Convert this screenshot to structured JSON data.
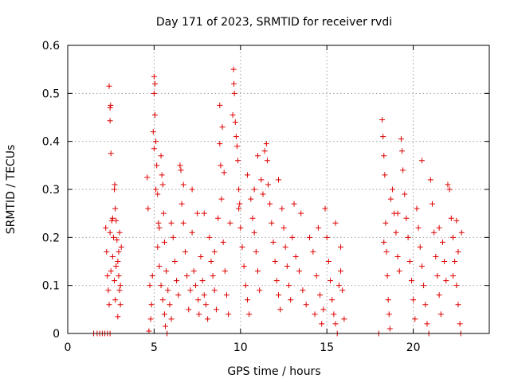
{
  "chart_data": {
    "type": "scatter",
    "title": "Day 171 of 2023, SRMTID for receiver rvdi",
    "xlabel": "GPS time / hours",
    "ylabel": "SRMTID / TECUs",
    "xlim": [
      0,
      24.4
    ],
    "ylim": [
      0,
      0.6
    ],
    "xticks": [
      0,
      5,
      10,
      15,
      20
    ],
    "xtick_labels": [
      "0",
      "5",
      "10",
      "15",
      "20"
    ],
    "yticks": [
      0,
      0.1,
      0.2,
      0.3,
      0.4,
      0.5,
      0.6
    ],
    "ytick_labels": [
      "0",
      "0.1",
      "0.2",
      "0.3",
      "0.4",
      "0.5",
      "0.6"
    ],
    "grid": true,
    "marker": "plus",
    "series": [
      {
        "name": "SRMTID",
        "color": "#e00000",
        "points": [
          [
            1.5,
            0.0
          ],
          [
            1.7,
            0.0
          ],
          [
            1.85,
            0.0
          ],
          [
            2.0,
            0.0
          ],
          [
            2.15,
            0.0
          ],
          [
            2.3,
            0.0
          ],
          [
            2.45,
            0.0
          ],
          [
            2.2,
            0.22
          ],
          [
            2.25,
            0.17
          ],
          [
            2.3,
            0.12
          ],
          [
            2.35,
            0.09
          ],
          [
            2.4,
            0.06
          ],
          [
            2.45,
            0.21
          ],
          [
            2.5,
            0.13
          ],
          [
            2.4,
            0.515
          ],
          [
            2.45,
            0.47
          ],
          [
            2.48,
            0.475
          ],
          [
            2.45,
            0.443
          ],
          [
            2.5,
            0.375
          ],
          [
            2.55,
            0.235
          ],
          [
            2.6,
            0.16
          ],
          [
            2.65,
            0.2
          ],
          [
            2.7,
            0.3
          ],
          [
            2.72,
            0.31
          ],
          [
            2.75,
            0.26
          ],
          [
            2.8,
            0.235
          ],
          [
            2.85,
            0.195
          ],
          [
            2.9,
            0.15
          ],
          [
            2.95,
            0.12
          ],
          [
            3.0,
            0.09
          ],
          [
            3.05,
            0.06
          ],
          [
            3.1,
            0.18
          ],
          [
            2.9,
            0.035
          ],
          [
            3.0,
            0.21
          ],
          [
            2.7,
            0.11
          ],
          [
            2.8,
            0.14
          ],
          [
            2.95,
            0.17
          ],
          [
            2.6,
            0.24
          ],
          [
            2.75,
            0.07
          ],
          [
            3.05,
            0.1
          ],
          [
            4.6,
            0.325
          ],
          [
            4.65,
            0.26
          ],
          [
            4.7,
            0.005
          ],
          [
            4.75,
            0.1
          ],
          [
            4.8,
            0.03
          ],
          [
            4.85,
            0.06
          ],
          [
            4.9,
            0.12
          ],
          [
            5.0,
            0.535
          ],
          [
            5.05,
            0.52
          ],
          [
            5.0,
            0.5
          ],
          [
            5.05,
            0.455
          ],
          [
            4.95,
            0.42
          ],
          [
            5.1,
            0.4
          ],
          [
            5.0,
            0.385
          ],
          [
            5.1,
            0.3
          ],
          [
            5.15,
            0.35
          ],
          [
            5.2,
            0.29
          ],
          [
            5.25,
            0.23
          ],
          [
            5.3,
            0.22
          ],
          [
            5.4,
            0.37
          ],
          [
            5.45,
            0.33
          ],
          [
            5.5,
            0.31
          ],
          [
            5.55,
            0.25
          ],
          [
            5.6,
            0.19
          ],
          [
            5.7,
            0.13
          ],
          [
            5.8,
            0.09
          ],
          [
            5.9,
            0.06
          ],
          [
            6.0,
            0.03
          ],
          [
            5.2,
            0.18
          ],
          [
            5.3,
            0.14
          ],
          [
            5.4,
            0.1
          ],
          [
            5.5,
            0.07
          ],
          [
            5.6,
            0.04
          ],
          [
            5.65,
            0.015
          ],
          [
            5.75,
            0.0
          ],
          [
            6.1,
            0.2
          ],
          [
            6.2,
            0.15
          ],
          [
            6.3,
            0.11
          ],
          [
            6.4,
            0.08
          ],
          [
            6.5,
            0.35
          ],
          [
            6.55,
            0.34
          ],
          [
            6.6,
            0.27
          ],
          [
            6.7,
            0.23
          ],
          [
            6.8,
            0.17
          ],
          [
            6.9,
            0.12
          ],
          [
            7.0,
            0.05
          ],
          [
            7.1,
            0.09
          ],
          [
            7.2,
            0.21
          ],
          [
            7.3,
            0.13
          ],
          [
            7.4,
            0.1
          ],
          [
            7.5,
            0.25
          ],
          [
            7.55,
            0.07
          ],
          [
            7.6,
            0.04
          ],
          [
            7.7,
            0.16
          ],
          [
            7.8,
            0.11
          ],
          [
            7.9,
            0.08
          ],
          [
            8.0,
            0.06
          ],
          [
            8.1,
            0.03
          ],
          [
            8.2,
            0.2
          ],
          [
            8.3,
            0.15
          ],
          [
            8.4,
            0.12
          ],
          [
            8.5,
            0.09
          ],
          [
            8.6,
            0.05
          ],
          [
            8.7,
            0.24
          ],
          [
            8.8,
            0.395
          ],
          [
            8.85,
            0.35
          ],
          [
            8.9,
            0.28
          ],
          [
            9.0,
            0.19
          ],
          [
            9.1,
            0.13
          ],
          [
            9.2,
            0.08
          ],
          [
            9.3,
            0.04
          ],
          [
            9.4,
            0.23
          ],
          [
            8.8,
            0.475
          ],
          [
            8.95,
            0.43
          ],
          [
            9.05,
            0.335
          ],
          [
            9.6,
            0.55
          ],
          [
            9.62,
            0.52
          ],
          [
            9.65,
            0.5
          ],
          [
            9.55,
            0.455
          ],
          [
            9.7,
            0.44
          ],
          [
            9.75,
            0.41
          ],
          [
            9.8,
            0.39
          ],
          [
            9.85,
            0.36
          ],
          [
            9.9,
            0.3
          ],
          [
            9.95,
            0.27
          ],
          [
            10.0,
            0.22
          ],
          [
            10.1,
            0.18
          ],
          [
            10.2,
            0.14
          ],
          [
            10.3,
            0.1
          ],
          [
            10.4,
            0.07
          ],
          [
            10.5,
            0.04
          ],
          [
            10.6,
            0.28
          ],
          [
            10.7,
            0.24
          ],
          [
            10.8,
            0.21
          ],
          [
            10.9,
            0.17
          ],
          [
            11.0,
            0.13
          ],
          [
            11.1,
            0.09
          ],
          [
            11.2,
            0.32
          ],
          [
            11.3,
            0.29
          ],
          [
            11.4,
            0.38
          ],
          [
            11.5,
            0.395
          ],
          [
            11.55,
            0.36
          ],
          [
            11.6,
            0.31
          ],
          [
            11.7,
            0.27
          ],
          [
            11.8,
            0.23
          ],
          [
            11.9,
            0.19
          ],
          [
            12.0,
            0.15
          ],
          [
            12.1,
            0.11
          ],
          [
            12.2,
            0.08
          ],
          [
            12.3,
            0.05
          ],
          [
            12.4,
            0.26
          ],
          [
            12.5,
            0.22
          ],
          [
            12.6,
            0.18
          ],
          [
            12.7,
            0.14
          ],
          [
            12.8,
            0.1
          ],
          [
            12.9,
            0.07
          ],
          [
            13.0,
            0.2
          ],
          [
            13.2,
            0.16
          ],
          [
            13.4,
            0.13
          ],
          [
            13.6,
            0.09
          ],
          [
            13.8,
            0.06
          ],
          [
            14.0,
            0.2
          ],
          [
            14.2,
            0.17
          ],
          [
            14.4,
            0.12
          ],
          [
            14.6,
            0.08
          ],
          [
            14.8,
            0.05
          ],
          [
            14.9,
            0.26
          ],
          [
            15.0,
            0.2
          ],
          [
            15.1,
            0.15
          ],
          [
            15.2,
            0.11
          ],
          [
            15.3,
            0.07
          ],
          [
            15.4,
            0.04
          ],
          [
            15.5,
            0.02
          ],
          [
            15.6,
            0.0
          ],
          [
            15.7,
            0.1
          ],
          [
            15.8,
            0.13
          ],
          [
            15.9,
            0.09
          ],
          [
            16.0,
            0.03
          ],
          [
            15.5,
            0.23
          ],
          [
            15.8,
            0.18
          ],
          [
            14.5,
            0.22
          ],
          [
            14.3,
            0.04
          ],
          [
            14.7,
            0.02
          ],
          [
            13.1,
            0.27
          ],
          [
            13.5,
            0.25
          ],
          [
            12.2,
            0.32
          ],
          [
            10.4,
            0.33
          ],
          [
            10.8,
            0.3
          ],
          [
            9.9,
            0.26
          ],
          [
            7.9,
            0.25
          ],
          [
            7.2,
            0.3
          ],
          [
            6.7,
            0.31
          ],
          [
            6.0,
            0.23
          ],
          [
            8.5,
            0.17
          ],
          [
            11.0,
            0.37
          ],
          [
            18.2,
            0.445
          ],
          [
            18.25,
            0.41
          ],
          [
            18.3,
            0.37
          ],
          [
            18.35,
            0.33
          ],
          [
            18.4,
            0.23
          ],
          [
            18.45,
            0.17
          ],
          [
            18.5,
            0.12
          ],
          [
            18.55,
            0.07
          ],
          [
            18.6,
            0.04
          ],
          [
            18.65,
            0.01
          ],
          [
            18.7,
            0.28
          ],
          [
            18.8,
            0.3
          ],
          [
            18.9,
            0.25
          ],
          [
            19.0,
            0.21
          ],
          [
            19.1,
            0.16
          ],
          [
            19.2,
            0.13
          ],
          [
            19.3,
            0.405
          ],
          [
            19.35,
            0.38
          ],
          [
            19.4,
            0.34
          ],
          [
            19.5,
            0.29
          ],
          [
            19.6,
            0.24
          ],
          [
            19.7,
            0.2
          ],
          [
            19.8,
            0.15
          ],
          [
            19.9,
            0.11
          ],
          [
            20.0,
            0.07
          ],
          [
            20.1,
            0.03
          ],
          [
            20.2,
            0.26
          ],
          [
            20.3,
            0.22
          ],
          [
            20.4,
            0.18
          ],
          [
            20.5,
            0.14
          ],
          [
            20.6,
            0.1
          ],
          [
            20.7,
            0.06
          ],
          [
            20.8,
            0.02
          ],
          [
            20.9,
            0.0
          ],
          [
            21.0,
            0.32
          ],
          [
            21.1,
            0.27
          ],
          [
            21.2,
            0.21
          ],
          [
            21.3,
            0.16
          ],
          [
            21.4,
            0.12
          ],
          [
            21.5,
            0.08
          ],
          [
            21.6,
            0.04
          ],
          [
            21.7,
            0.19
          ],
          [
            21.8,
            0.15
          ],
          [
            21.9,
            0.11
          ],
          [
            22.0,
            0.31
          ],
          [
            22.1,
            0.3
          ],
          [
            22.2,
            0.24
          ],
          [
            22.3,
            0.2
          ],
          [
            22.4,
            0.15
          ],
          [
            22.5,
            0.1
          ],
          [
            22.6,
            0.06
          ],
          [
            22.7,
            0.02
          ],
          [
            22.75,
            0.0
          ],
          [
            22.8,
            0.21
          ],
          [
            22.5,
            0.235
          ],
          [
            22.6,
            0.17
          ],
          [
            22.3,
            0.12
          ],
          [
            21.5,
            0.22
          ],
          [
            20.5,
            0.36
          ],
          [
            19.1,
            0.25
          ],
          [
            18.3,
            0.19
          ],
          [
            18.0,
            0.0
          ]
        ]
      }
    ]
  }
}
